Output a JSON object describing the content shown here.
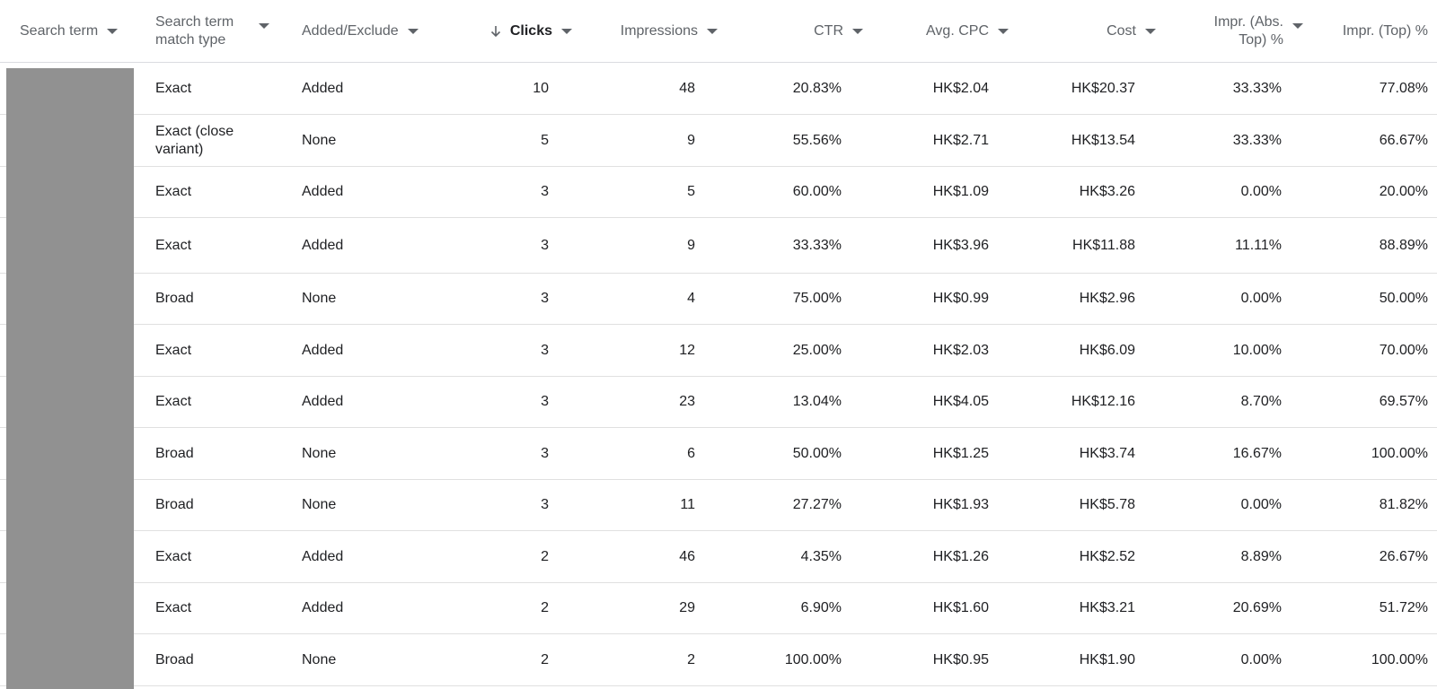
{
  "headers": {
    "search_term": "Search term",
    "match_type": "Search term\nmatch type",
    "added_exclude": "Added/Exclude",
    "clicks": "Clicks",
    "impressions": "Impressions",
    "ctr": "CTR",
    "avg_cpc": "Avg. CPC",
    "cost": "Cost",
    "impr_abs_top": "Impr. (Abs.\nTop) %",
    "impr_top": "Impr. (Top) %"
  },
  "sort": {
    "column": "Clicks",
    "direction": "descending"
  },
  "rows": [
    {
      "match_type": "Exact",
      "added_exclude": "Added",
      "clicks": "10",
      "impressions": "48",
      "ctr": "20.83%",
      "avg_cpc": "HK$2.04",
      "cost": "HK$20.37",
      "impr_abs_top": "33.33%",
      "impr_top": "77.08%"
    },
    {
      "match_type": "Exact (close\nvariant)",
      "added_exclude": "None",
      "clicks": "5",
      "impressions": "9",
      "ctr": "55.56%",
      "avg_cpc": "HK$2.71",
      "cost": "HK$13.54",
      "impr_abs_top": "33.33%",
      "impr_top": "66.67%"
    },
    {
      "match_type": "Exact",
      "added_exclude": "Added",
      "clicks": "3",
      "impressions": "5",
      "ctr": "60.00%",
      "avg_cpc": "HK$1.09",
      "cost": "HK$3.26",
      "impr_abs_top": "0.00%",
      "impr_top": "20.00%"
    },
    {
      "match_type": "Exact",
      "added_exclude": "Added",
      "clicks": "3",
      "impressions": "9",
      "ctr": "33.33%",
      "avg_cpc": "HK$3.96",
      "cost": "HK$11.88",
      "impr_abs_top": "11.11%",
      "impr_top": "88.89%"
    },
    {
      "match_type": "Broad",
      "added_exclude": "None",
      "clicks": "3",
      "impressions": "4",
      "ctr": "75.00%",
      "avg_cpc": "HK$0.99",
      "cost": "HK$2.96",
      "impr_abs_top": "0.00%",
      "impr_top": "50.00%"
    },
    {
      "match_type": "Exact",
      "added_exclude": "Added",
      "clicks": "3",
      "impressions": "12",
      "ctr": "25.00%",
      "avg_cpc": "HK$2.03",
      "cost": "HK$6.09",
      "impr_abs_top": "10.00%",
      "impr_top": "70.00%"
    },
    {
      "match_type": "Exact",
      "added_exclude": "Added",
      "clicks": "3",
      "impressions": "23",
      "ctr": "13.04%",
      "avg_cpc": "HK$4.05",
      "cost": "HK$12.16",
      "impr_abs_top": "8.70%",
      "impr_top": "69.57%"
    },
    {
      "match_type": "Broad",
      "added_exclude": "None",
      "clicks": "3",
      "impressions": "6",
      "ctr": "50.00%",
      "avg_cpc": "HK$1.25",
      "cost": "HK$3.74",
      "impr_abs_top": "16.67%",
      "impr_top": "100.00%"
    },
    {
      "match_type": "Broad",
      "added_exclude": "None",
      "clicks": "3",
      "impressions": "11",
      "ctr": "27.27%",
      "avg_cpc": "HK$1.93",
      "cost": "HK$5.78",
      "impr_abs_top": "0.00%",
      "impr_top": "81.82%"
    },
    {
      "match_type": "Exact",
      "added_exclude": "Added",
      "clicks": "2",
      "impressions": "46",
      "ctr": "4.35%",
      "avg_cpc": "HK$1.26",
      "cost": "HK$2.52",
      "impr_abs_top": "8.89%",
      "impr_top": "26.67%"
    },
    {
      "match_type": "Exact",
      "added_exclude": "Added",
      "clicks": "2",
      "impressions": "29",
      "ctr": "6.90%",
      "avg_cpc": "HK$1.60",
      "cost": "HK$3.21",
      "impr_abs_top": "20.69%",
      "impr_top": "51.72%"
    },
    {
      "match_type": "Broad",
      "added_exclude": "None",
      "clicks": "2",
      "impressions": "2",
      "ctr": "100.00%",
      "avg_cpc": "HK$0.95",
      "cost": "HK$1.90",
      "impr_abs_top": "0.00%",
      "impr_top": "100.00%"
    }
  ],
  "colors": {
    "header_text": "#5f6368",
    "body_text": "#202124",
    "row_border": "#e0e0e0",
    "redaction": "#919191"
  },
  "icons": {
    "sort": "arrow-down-icon",
    "filter": "caret-down-icon"
  }
}
